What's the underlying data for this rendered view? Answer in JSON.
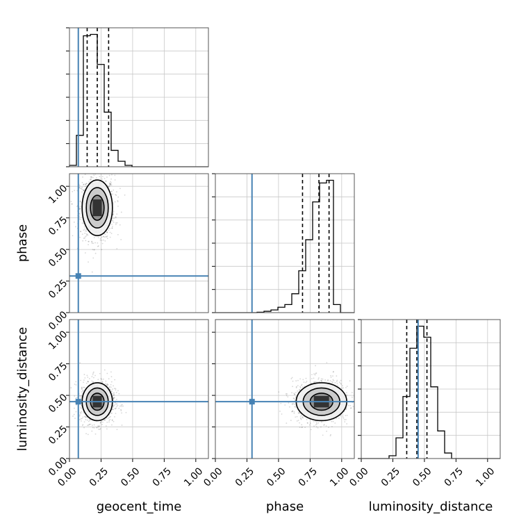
{
  "chart_data": {
    "type": "corner",
    "parameters": [
      "geocent_time",
      "phase",
      "luminosity_distance"
    ],
    "labels": {
      "geocent_time": "geocent_time",
      "phase": "phase",
      "luminosity_distance": "luminosity_distance"
    },
    "range": [
      0,
      1.1
    ],
    "ticks": [
      "0.00",
      "0.25",
      "0.50",
      "0.75",
      "1.00"
    ],
    "tick_values": [
      0,
      0.25,
      0.5,
      0.75,
      1.0
    ],
    "grid": true,
    "truth_color": "#4682b4",
    "hist_color": "#000000",
    "truths": {
      "geocent_time": 0.07,
      "phase": 0.29,
      "luminosity_distance": 0.45
    },
    "quantiles": {
      "geocent_time": [
        0.14,
        0.22,
        0.31
      ],
      "phase": [
        0.69,
        0.82,
        0.9
      ],
      "luminosity_distance": [
        0.36,
        0.44,
        0.52
      ]
    },
    "histograms": {
      "geocent_time": {
        "edges": [
          0,
          0.055,
          0.11,
          0.165,
          0.22,
          0.275,
          0.33,
          0.385,
          0.44,
          0.495,
          0.55,
          0.605,
          0.66,
          0.715,
          0.77,
          0.825,
          0.88,
          0.935,
          0.99,
          1.045,
          1.1
        ],
        "counts": [
          0.01,
          0.23,
          0.96,
          0.97,
          0.75,
          0.4,
          0.12,
          0.04,
          0.01,
          0,
          0,
          0,
          0,
          0,
          0,
          0,
          0,
          0,
          0,
          0
        ]
      },
      "phase": {
        "edges": [
          0,
          0.055,
          0.11,
          0.165,
          0.22,
          0.275,
          0.33,
          0.385,
          0.44,
          0.495,
          0.55,
          0.605,
          0.66,
          0.715,
          0.77,
          0.825,
          0.88,
          0.935,
          0.99,
          1.045,
          1.1
        ],
        "counts": [
          0,
          0,
          0,
          0,
          0,
          0,
          0.003,
          0.01,
          0.02,
          0.04,
          0.06,
          0.14,
          0.31,
          0.54,
          0.82,
          0.96,
          0.98,
          0.06,
          0,
          0
        ]
      },
      "luminosity_distance": {
        "edges": [
          0,
          0.055,
          0.11,
          0.165,
          0.22,
          0.275,
          0.33,
          0.385,
          0.44,
          0.495,
          0.55,
          0.605,
          0.66,
          0.715,
          0.77,
          0.825,
          0.88,
          0.935,
          0.99,
          1.045,
          1.1
        ],
        "counts": [
          0,
          0,
          0,
          0,
          0.02,
          0.15,
          0.45,
          0.8,
          0.96,
          0.88,
          0.52,
          0.2,
          0.04,
          0,
          0,
          0,
          0,
          0,
          0,
          0
        ]
      }
    },
    "posterior_2d": {
      "phase_vs_geocent_time": {
        "x_mean": 0.22,
        "y_mean": 0.83,
        "x_sd": 0.06,
        "y_sd": 0.11
      },
      "luminosity_distance_vs_geocent_time": {
        "x_mean": 0.22,
        "y_mean": 0.45,
        "x_sd": 0.06,
        "y_sd": 0.075
      },
      "luminosity_distance_vs_phase": {
        "x_mean": 0.84,
        "y_mean": 0.45,
        "x_sd": 0.1,
        "y_sd": 0.075
      }
    },
    "panels": [
      {
        "row": 0,
        "col": 0,
        "kind": "hist",
        "param": "geocent_time"
      },
      {
        "row": 1,
        "col": 0,
        "kind": "2d",
        "x": "geocent_time",
        "y": "phase"
      },
      {
        "row": 1,
        "col": 1,
        "kind": "hist",
        "param": "phase"
      },
      {
        "row": 2,
        "col": 0,
        "kind": "2d",
        "x": "geocent_time",
        "y": "luminosity_distance"
      },
      {
        "row": 2,
        "col": 1,
        "kind": "2d",
        "x": "phase",
        "y": "luminosity_distance"
      },
      {
        "row": 2,
        "col": 2,
        "kind": "hist",
        "param": "luminosity_distance"
      }
    ]
  }
}
